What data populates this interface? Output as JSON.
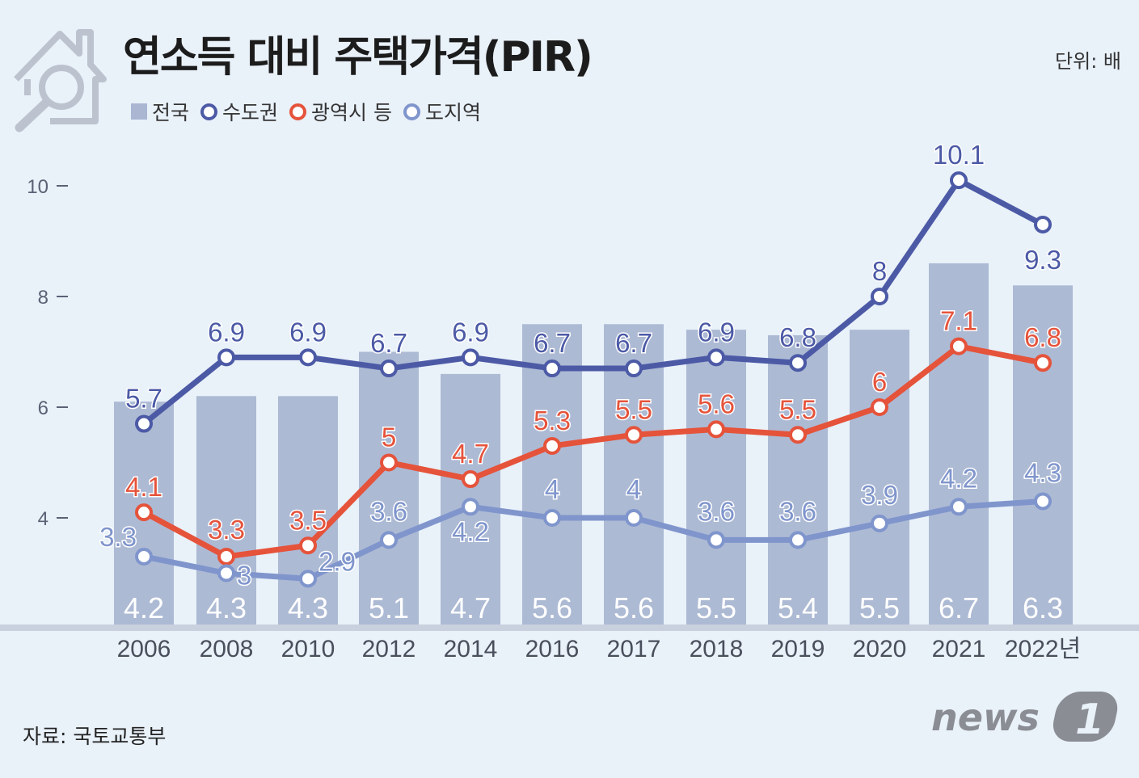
{
  "title": "연소득 대비 주택가격(PIR)",
  "unit": "단위: 배",
  "source": "자료: 국토교통부",
  "logo": "news1",
  "colors": {
    "background": "#e9f1f9",
    "bars": "#aab6d2",
    "capital_area": "#4c5aa6",
    "metro_cities": "#e5533b",
    "provinces": "#7f95cc",
    "bar_label": "#ffffff"
  },
  "icons": [
    "house-search-icon"
  ],
  "legend": [
    {
      "label": "전국",
      "marker": "square",
      "color": "#aab6d2"
    },
    {
      "label": "수도권",
      "marker": "ring",
      "color": "#4c5aa6"
    },
    {
      "label": "광역시 등",
      "marker": "ring",
      "color": "#e5533b"
    },
    {
      "label": "도지역",
      "marker": "ring",
      "color": "#7f95cc"
    }
  ],
  "chart_data": {
    "type": "bar",
    "title": "연소득 대비 주택가격(PIR)",
    "categories": [
      "2006",
      "2008",
      "2010",
      "2012",
      "2014",
      "2016",
      "2017",
      "2018",
      "2019",
      "2020",
      "2021",
      "2022년"
    ],
    "ylim": [
      0,
      11
    ],
    "yticks": [
      "4",
      "6",
      "8",
      "10"
    ],
    "grid": false,
    "legend_position": "top-left",
    "series": [
      {
        "name": "전국",
        "type": "bar",
        "color": "#aab6d2",
        "values": [
          4.2,
          4.3,
          4.3,
          5.1,
          4.7,
          5.6,
          5.6,
          5.5,
          5.4,
          5.5,
          6.7,
          6.3
        ],
        "labels": [
          "4.2",
          "4.3",
          "4.3",
          "5.1",
          "4.7",
          "5.6",
          "5.6",
          "5.5",
          "5.4",
          "5.5",
          "6.7",
          "6.3"
        ]
      },
      {
        "name": "수도권",
        "type": "line",
        "color": "#4c5aa6",
        "values": [
          5.7,
          6.9,
          6.9,
          6.7,
          6.9,
          6.7,
          6.7,
          6.9,
          6.8,
          8.0,
          10.1,
          9.3
        ],
        "labels": [
          "5.7",
          "6.9",
          "6.9",
          "6.7",
          "6.9",
          "6.7",
          "6.7",
          "6.9",
          "6.8",
          "8",
          "10.1",
          "9.3"
        ]
      },
      {
        "name": "광역시 등",
        "type": "line",
        "color": "#e5533b",
        "values": [
          4.1,
          3.3,
          3.5,
          5.0,
          4.7,
          5.3,
          5.5,
          5.6,
          5.5,
          6.0,
          7.1,
          6.8
        ],
        "labels": [
          "4.1",
          "3.3",
          "3.5",
          "5",
          "4.7",
          "5.3",
          "5.5",
          "5.6",
          "5.5",
          "6",
          "7.1",
          "6.8"
        ]
      },
      {
        "name": "도지역",
        "type": "line",
        "color": "#7f95cc",
        "values": [
          3.3,
          3.0,
          2.9,
          3.6,
          4.2,
          4.0,
          4.0,
          3.6,
          3.6,
          3.9,
          4.2,
          4.3
        ],
        "labels": [
          "3.3",
          "3",
          "2.9",
          "3.6",
          "4.2",
          "4",
          "4",
          "3.6",
          "3.6",
          "3.9",
          "4.2",
          "4.3"
        ]
      }
    ]
  }
}
